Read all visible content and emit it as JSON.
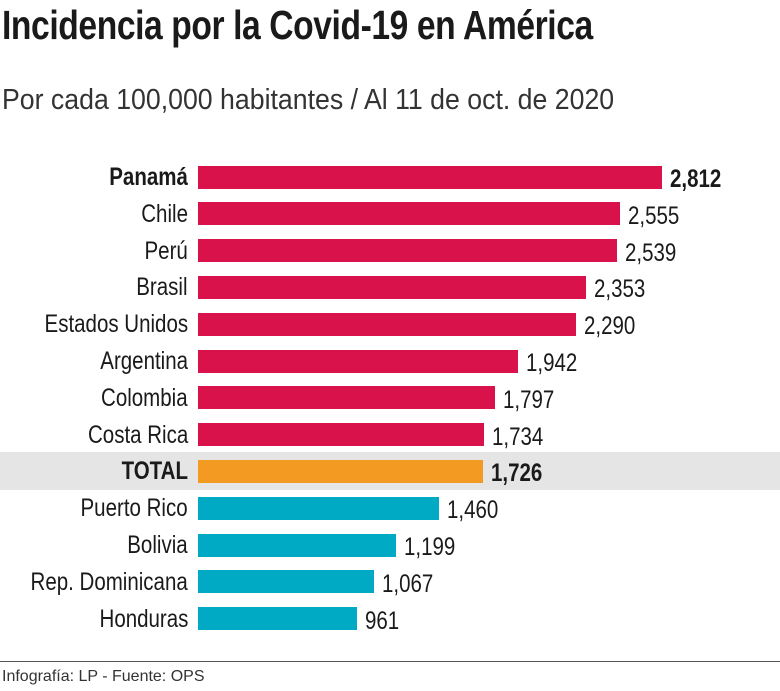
{
  "chart_data": {
    "type": "bar",
    "orientation": "horizontal",
    "title": "Incidencia por la Covid-19 en América",
    "subtitle": "Por cada 100,000 habitantes / Al 11 de oct. de 2020",
    "categories": [
      "Panamá",
      "Chile",
      "Perú",
      "Brasil",
      "Estados Unidos",
      "Argentina",
      "Colombia",
      "Costa Rica",
      "TOTAL",
      "Puerto Rico",
      "Bolivia",
      "Rep. Dominicana",
      "Honduras"
    ],
    "values": [
      2812,
      2555,
      2539,
      2353,
      2290,
      1942,
      1797,
      1734,
      1726,
      1460,
      1199,
      1067,
      961
    ],
    "value_labels": [
      "2,812",
      "2,555",
      "2,539",
      "2,353",
      "2,290",
      "1,942",
      "1,797",
      "1,734",
      "1,726",
      "1,460",
      "1,199",
      "1,067",
      "961"
    ],
    "highlighted": [
      "Panamá",
      "TOTAL"
    ],
    "colors": {
      "above_total": "#d9124b",
      "total": "#f39a22",
      "below_total": "#00aac4",
      "total_band": "#e5e5e5"
    },
    "xlim": [
      0,
      2812
    ],
    "grid": false
  },
  "footer": "Infografía: LP - Fuente: OPS"
}
